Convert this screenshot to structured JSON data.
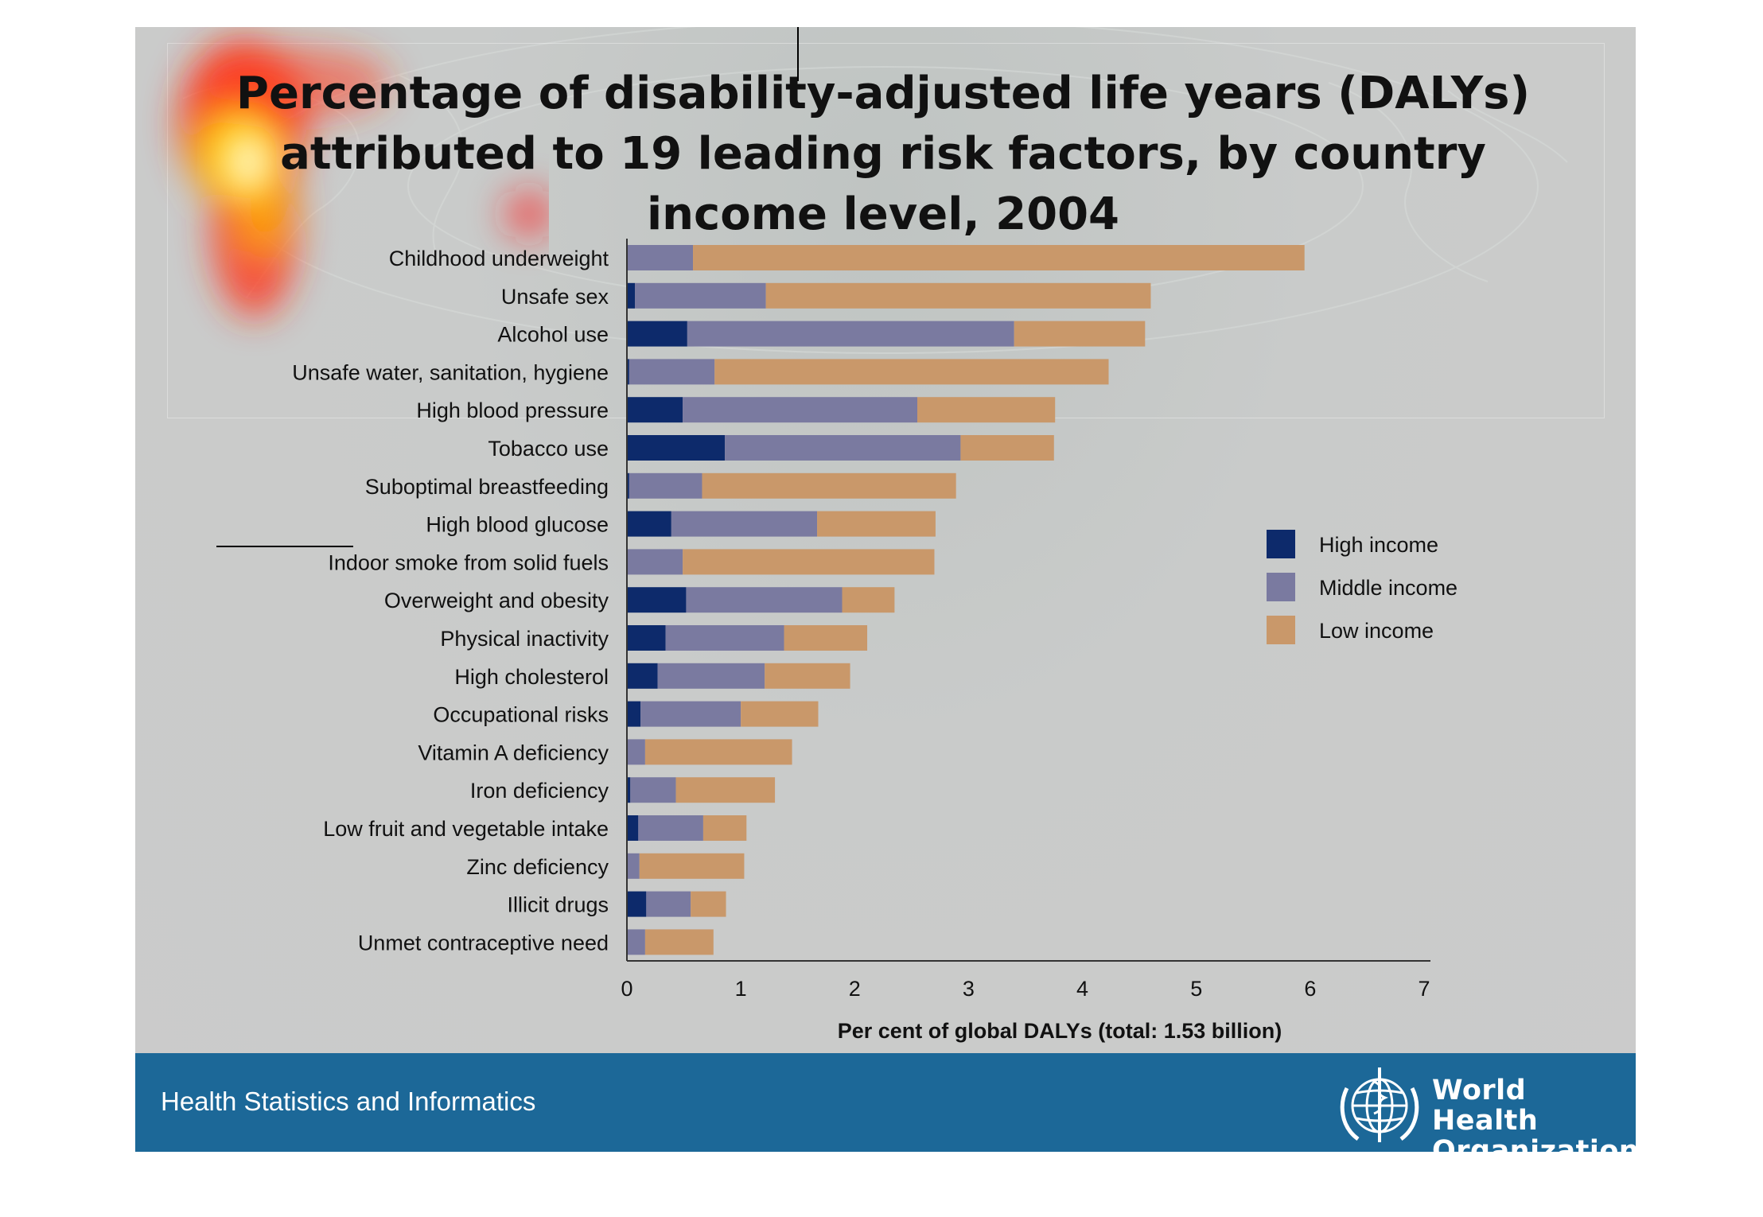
{
  "slide": {
    "footer_text": "Health Statistics and Informatics",
    "org_line1": "World Health",
    "org_line2": "Organization",
    "footer_color": "#1c6898"
  },
  "chart_data": {
    "type": "bar",
    "orientation": "horizontal",
    "stacked": true,
    "title": "Percentage of disability-adjusted life years (DALYs) attributed to 19 leading risk factors, by country income level, 2004",
    "xlabel": "Per cent of global DALYs (total: 1.53 billion)",
    "ylabel": "",
    "xlim": [
      0,
      7
    ],
    "xticks": [
      "0",
      "1",
      "2",
      "3",
      "4",
      "5",
      "6",
      "7"
    ],
    "grid": false,
    "legend_position": "right",
    "categories": [
      "Childhood underweight",
      "Unsafe sex",
      "Alcohol use",
      "Unsafe water, sanitation, hygiene",
      "High blood pressure",
      "Tobacco use",
      "Suboptimal breastfeeding",
      "High blood glucose",
      "Indoor smoke from solid fuels",
      "Overweight and obesity",
      "Physical inactivity",
      "High cholesterol",
      "Occupational risks",
      "Vitamin A deficiency",
      "Iron deficiency",
      "Low fruit and vegetable intake",
      "Zinc deficiency",
      "Illicit drugs",
      "Unmet contraceptive need"
    ],
    "series": [
      {
        "name": "High income",
        "color": "#0d2a6b",
        "values": [
          0.0,
          0.07,
          0.53,
          0.02,
          0.49,
          0.86,
          0.02,
          0.39,
          0.0,
          0.52,
          0.34,
          0.27,
          0.12,
          0.0,
          0.03,
          0.1,
          0.0,
          0.17,
          0.0
        ]
      },
      {
        "name": "Middle income",
        "color": "#7a7aa0",
        "values": [
          0.58,
          1.15,
          2.87,
          0.75,
          2.06,
          2.07,
          0.64,
          1.28,
          0.49,
          1.37,
          1.04,
          0.94,
          0.88,
          0.16,
          0.4,
          0.57,
          0.11,
          0.39,
          0.16
        ]
      },
      {
        "name": "Low income",
        "color": "#c9986a",
        "values": [
          5.37,
          3.38,
          1.15,
          3.46,
          1.21,
          0.82,
          2.23,
          1.04,
          2.21,
          0.46,
          0.73,
          0.75,
          0.68,
          1.29,
          0.87,
          0.38,
          0.92,
          0.31,
          0.6
        ]
      }
    ]
  }
}
